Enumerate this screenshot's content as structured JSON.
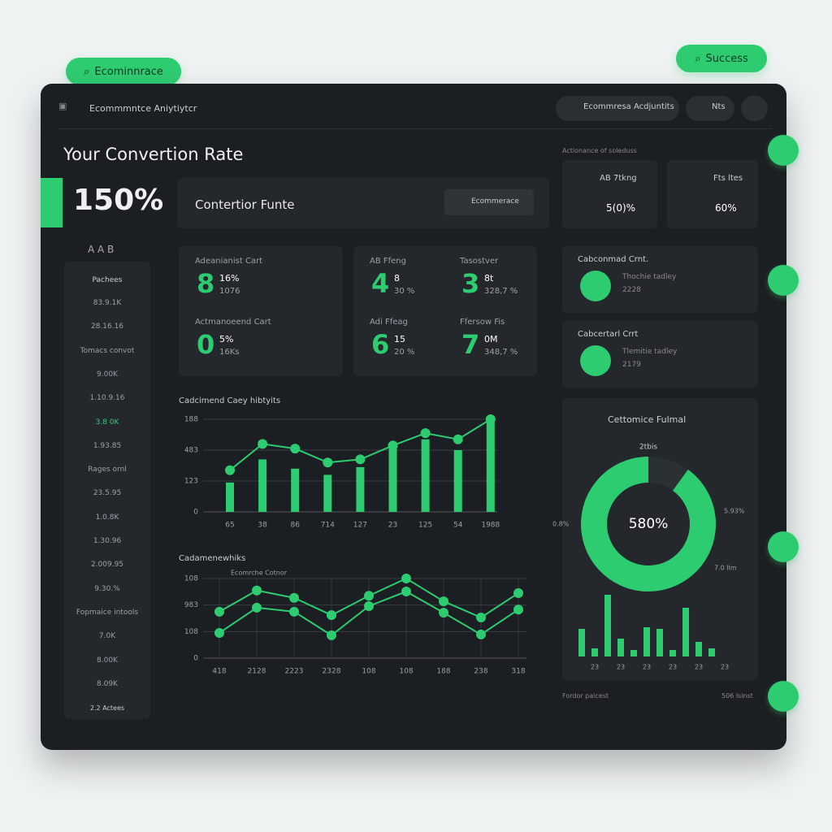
{
  "top_pills": {
    "left": "Ecominnrace",
    "right": "Success"
  },
  "header": {
    "title": "Ecommmntce Aniytiytcr",
    "account": "Ecommresa Acdjuntits",
    "search": "Nts"
  },
  "hero": {
    "title": "Your Convertion Rate",
    "value": "150%",
    "funnel_title": "Contertior Funte",
    "dropdown": "Ecommerace"
  },
  "sidebar": {
    "heading": "A A B",
    "title": "Pachees",
    "items": [
      "83.9.1K",
      "28.16.16",
      "Tomacs convot",
      "9.00K",
      "1.10.9.16",
      "3.8 0K",
      "1.93.85",
      "Rages ornl",
      "23.5.95",
      "1.0.8K",
      "1.30.96",
      "2.009.95",
      "9.30.%",
      "Fopmaice intools",
      "7.0K",
      "8.00K",
      "8.09K"
    ],
    "footer": "2.2 Actees"
  },
  "metrics": [
    {
      "label": "Adeanianist Cart",
      "big": "8",
      "top": "16%",
      "bottom": "1076"
    },
    {
      "label": "Actmanoeend Cart",
      "big": "0",
      "top": "5%",
      "bottom": "16Ks"
    },
    {
      "label": "AB Ffeng",
      "big": "4",
      "top": "8",
      "bottom": "30 %"
    },
    {
      "label": "Tasostver",
      "big": "3",
      "top": "8t",
      "bottom": "328,7 %"
    },
    {
      "label": "Adi Ffeag",
      "big": "6",
      "top": "15",
      "bottom": "20 %"
    },
    {
      "label": "Ffersow Fis",
      "big": "7",
      "top": "0M",
      "bottom": "348,7 %"
    }
  ],
  "top_right": {
    "caption": "Actionance of soleduss",
    "cards": [
      {
        "label": "AB 7tkng",
        "value": "5(0)%"
      },
      {
        "label": "Fts ltes",
        "value": "60%"
      }
    ]
  },
  "carts": [
    {
      "title": "Cabconmad Crnt.",
      "subtitle": "Thochie tadley",
      "value": "2228"
    },
    {
      "title": "Cabcertarl Crrt",
      "subtitle": "Tlemitie tadley",
      "value": "2179"
    }
  ],
  "chart_data": [
    {
      "type": "combo",
      "title": "Cadcimend Caey hibtyits",
      "categories": [
        "65",
        "38",
        "86",
        "714",
        "127",
        "23",
        "125",
        "54",
        "1988"
      ],
      "ylim": [
        0,
        3
      ],
      "yticks": [
        {
          "value": 0,
          "label": "0"
        },
        {
          "value": 1,
          "label": "123"
        },
        {
          "value": 2,
          "label": "483"
        },
        {
          "value": 3,
          "label": "188"
        }
      ],
      "grid": true,
      "series": [
        {
          "type": "bar",
          "color": "#2ecc71",
          "values": [
            0.95,
            1.7,
            1.4,
            1.2,
            1.45,
            2.2,
            2.35,
            2.0,
            3.0
          ]
        },
        {
          "type": "line",
          "color": "#2ecc71",
          "values": [
            1.35,
            2.2,
            2.05,
            1.6,
            1.7,
            2.15,
            2.55,
            2.35,
            3.0
          ]
        }
      ]
    },
    {
      "type": "line",
      "title": "Cadamenewhiks",
      "legend": "Ecomrche Cotnor",
      "categories": [
        "418",
        "2128",
        "2223",
        "2328",
        "108",
        "108",
        "188",
        "238",
        "318"
      ],
      "ylim": [
        0,
        3
      ],
      "yticks": [
        {
          "value": 0,
          "label": "0"
        },
        {
          "value": 1,
          "label": "108"
        },
        {
          "value": 2,
          "label": "983"
        },
        {
          "value": 3,
          "label": "108"
        }
      ],
      "grid": true,
      "series": [
        {
          "color": "#2ecc71",
          "values": [
            1.75,
            2.55,
            2.27,
            1.62,
            2.35,
            3.0,
            2.14,
            1.53,
            2.45
          ]
        },
        {
          "color": "#2ecc71",
          "values": [
            0.95,
            1.9,
            1.75,
            0.86,
            1.96,
            2.51,
            1.71,
            0.89,
            1.83
          ]
        }
      ]
    },
    {
      "type": "pie",
      "title": "Cettomice Fulmal",
      "subtitle": "2tbis",
      "center_label": "580%",
      "annotations": [
        "0.8%",
        "5.93%",
        "7.0 Ilm"
      ],
      "values": [
        90,
        10
      ],
      "colors": [
        "#2ecc71",
        "#2b3035"
      ]
    },
    {
      "type": "bar",
      "color": "#2ecc71",
      "categories": [
        null,
        "23",
        null,
        "23",
        null,
        "23",
        null,
        "23",
        null,
        "23",
        null,
        "23"
      ],
      "values": [
        34,
        10,
        76,
        22,
        8,
        36,
        34,
        8,
        60,
        18,
        10,
        0
      ]
    }
  ],
  "footer": {
    "left": "Fordor paicest",
    "right": "506 lsinst"
  }
}
